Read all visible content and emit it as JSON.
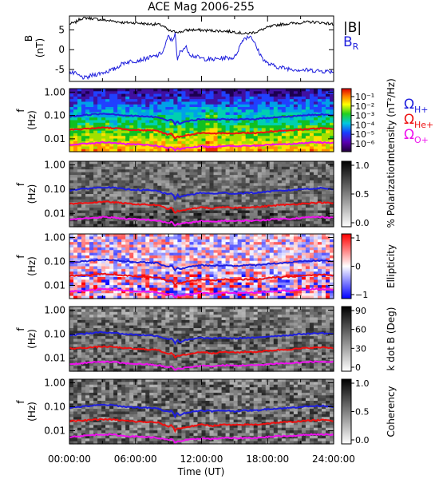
{
  "title": "ACE Mag 2006-255",
  "chart_data": [
    {
      "type": "line",
      "panel": "magnetic-field",
      "ylabel_top": "B",
      "ylabel_bottom": "(nT)",
      "ylim": [
        -8,
        8.5
      ],
      "yticks": [
        5,
        0,
        -5
      ],
      "xlim_hours": [
        0,
        24
      ],
      "series": [
        {
          "name": "|B|",
          "color": "#000000",
          "x": [
            0,
            0.5,
            1,
            1.5,
            2,
            3,
            4,
            5,
            6,
            7,
            8,
            8.5,
            9,
            9.5,
            9.8,
            10,
            10.5,
            11,
            12,
            13,
            14,
            15,
            16,
            17,
            18,
            19,
            20,
            21,
            22,
            23,
            24
          ],
          "y": [
            6.5,
            6.8,
            7.8,
            8.0,
            7.9,
            7.5,
            7.2,
            6.8,
            6.8,
            6.5,
            6.4,
            6.0,
            4.8,
            4.5,
            4.6,
            4.4,
            4.8,
            5.0,
            4.9,
            4.8,
            4.7,
            4.5,
            4.0,
            4.5,
            5.6,
            6.3,
            6.6,
            6.8,
            7.0,
            6.8,
            6.4
          ]
        },
        {
          "name": "B_R",
          "color": "#1f1fdd",
          "x": [
            0,
            0.5,
            1,
            1.5,
            2,
            3,
            4,
            5,
            6,
            7,
            8,
            8.5,
            9,
            9.3,
            9.6,
            9.8,
            10,
            10.3,
            10.6,
            11,
            12,
            13,
            14,
            15,
            15.8,
            16.5,
            17,
            17.5,
            18,
            18.5,
            19,
            20,
            21,
            22,
            23,
            24
          ],
          "y": [
            -5.8,
            -6.0,
            -6.8,
            -7.2,
            -6.5,
            -5.8,
            -5.0,
            -3.2,
            -2.8,
            -2.2,
            -1.5,
            -0.5,
            3.5,
            2.2,
            4.0,
            -3.0,
            -0.8,
            0.2,
            0.6,
            -1.3,
            -2.2,
            -2.5,
            -2.1,
            -2.0,
            2.8,
            3.5,
            0.5,
            -2.0,
            -3.5,
            -4.0,
            -4.4,
            -4.8,
            -5.1,
            -5.2,
            -5.4,
            -5.5
          ]
        }
      ]
    },
    {
      "type": "heatmap",
      "panel": "intensity",
      "ylabel": "f (Hz)",
      "colorbar_label": "Intensity (nT²/Hz)",
      "colorbar_ticks": [
        "10⁻¹",
        "10⁻²",
        "10⁻³",
        "10⁻⁴",
        "10⁻⁵",
        "10⁻⁶"
      ],
      "colormap": "rainbow"
    },
    {
      "type": "heatmap",
      "panel": "polarization",
      "ylabel": "f (Hz)",
      "colorbar_label": "% Polarization",
      "colorbar_ticks": [
        "1.0",
        "0.5",
        "0.0"
      ],
      "colormap": "gray"
    },
    {
      "type": "heatmap",
      "panel": "ellipticity",
      "ylabel": "f (Hz)",
      "colorbar_label": "Ellipticity",
      "colorbar_ticks": [
        "1",
        "0",
        "−1"
      ],
      "colormap": "blue-white-red"
    },
    {
      "type": "heatmap",
      "panel": "kdotb",
      "ylabel": "f (Hz)",
      "colorbar_label": "k dot B (Deg)",
      "colorbar_ticks": [
        "90",
        "60",
        "30",
        "0"
      ],
      "colormap": "gray"
    },
    {
      "type": "heatmap",
      "panel": "coherency",
      "ylabel": "f (Hz)",
      "colorbar_label": "Coherency",
      "colorbar_ticks": [
        "1.0",
        "0.5",
        "0.0"
      ],
      "colormap": "gray"
    }
  ],
  "gyro": {
    "x": [
      0,
      1,
      2,
      3,
      4,
      5,
      6,
      7,
      8,
      8.5,
      9,
      9.3,
      9.6,
      9.8,
      10,
      10.5,
      11,
      12,
      13,
      14,
      15,
      16,
      17,
      18,
      19,
      20,
      21,
      22,
      23,
      24
    ],
    "H": [
      0.09,
      0.1,
      0.11,
      0.12,
      0.115,
      0.1,
      0.095,
      0.09,
      0.085,
      0.07,
      0.06,
      0.07,
      0.04,
      0.06,
      0.045,
      0.055,
      0.06,
      0.07,
      0.065,
      0.07,
      0.065,
      0.07,
      0.07,
      0.08,
      0.085,
      0.09,
      0.1,
      0.105,
      0.11,
      0.1
    ],
    "He": [
      0.025,
      0.026,
      0.028,
      0.03,
      0.029,
      0.026,
      0.024,
      0.023,
      0.022,
      0.018,
      0.015,
      0.017,
      0.01,
      0.013,
      0.012,
      0.014,
      0.015,
      0.018,
      0.016,
      0.018,
      0.017,
      0.018,
      0.018,
      0.02,
      0.022,
      0.023,
      0.025,
      0.027,
      0.028,
      0.026
    ],
    "O": [
      0.0055,
      0.006,
      0.0065,
      0.007,
      0.0068,
      0.006,
      0.0057,
      0.0055,
      0.005,
      0.0045,
      0.004,
      0.0045,
      0.003,
      0.0038,
      0.0035,
      0.004,
      0.0042,
      0.0048,
      0.0045,
      0.005,
      0.0048,
      0.005,
      0.005,
      0.0055,
      0.006,
      0.006,
      0.0065,
      0.007,
      0.007,
      0.0068
    ]
  },
  "legend": {
    "b_mag": "|B|",
    "b_r": "B",
    "b_r_sub": "R",
    "omega": "Ω",
    "h": "H+",
    "he": "He+",
    "o": "O+"
  },
  "freq_ticks": [
    "1.00",
    "0.10",
    "0.01"
  ],
  "x_ticks": [
    "00:00:00",
    "06:00:00",
    "12:00:00",
    "18:00:00",
    "24:00:00"
  ],
  "xlabel": "Time (UT)",
  "colors": {
    "h": "#1f1fdd",
    "he": "#ee1111",
    "o": "#ee11ee",
    "b": "#000000",
    "br": "#1f1fdd"
  }
}
